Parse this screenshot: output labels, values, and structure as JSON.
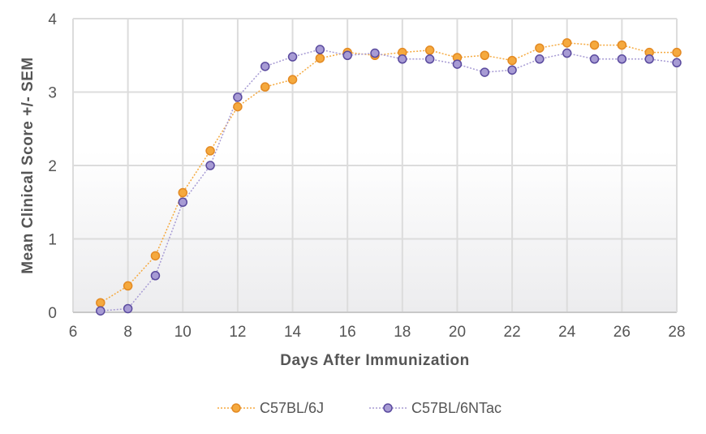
{
  "chart_data": {
    "type": "line",
    "title": "",
    "xlabel": "Days After Immunization",
    "ylabel": "Mean Clinical Score +/- SEM",
    "xlim": [
      6,
      28
    ],
    "ylim": [
      0,
      4
    ],
    "xticks": [
      6,
      8,
      10,
      12,
      14,
      16,
      18,
      20,
      22,
      24,
      26,
      28
    ],
    "yticks": [
      0,
      1,
      2,
      3,
      4
    ],
    "grid": true,
    "legend_position": "bottom",
    "x": [
      7,
      8,
      9,
      10,
      11,
      12,
      13,
      14,
      15,
      16,
      17,
      18,
      19,
      20,
      21,
      22,
      23,
      24,
      25,
      26,
      27,
      28
    ],
    "series": [
      {
        "name": "C57BL/6J",
        "color": "#f5a93e",
        "stroke": "#e38a23",
        "values": [
          0.13,
          0.36,
          0.77,
          1.63,
          2.2,
          2.8,
          3.07,
          3.17,
          3.46,
          3.54,
          3.5,
          3.54,
          3.57,
          3.47,
          3.5,
          3.43,
          3.6,
          3.67,
          3.64,
          3.64,
          3.54,
          3.54
        ]
      },
      {
        "name": "C57BL/6NTac",
        "color": "#a79bd4",
        "stroke": "#5a4a9e",
        "values": [
          0.02,
          0.05,
          0.5,
          1.5,
          2.0,
          2.93,
          3.35,
          3.48,
          3.58,
          3.5,
          3.53,
          3.45,
          3.45,
          3.38,
          3.27,
          3.3,
          3.45,
          3.53,
          3.45,
          3.45,
          3.45,
          3.4
        ]
      }
    ]
  }
}
